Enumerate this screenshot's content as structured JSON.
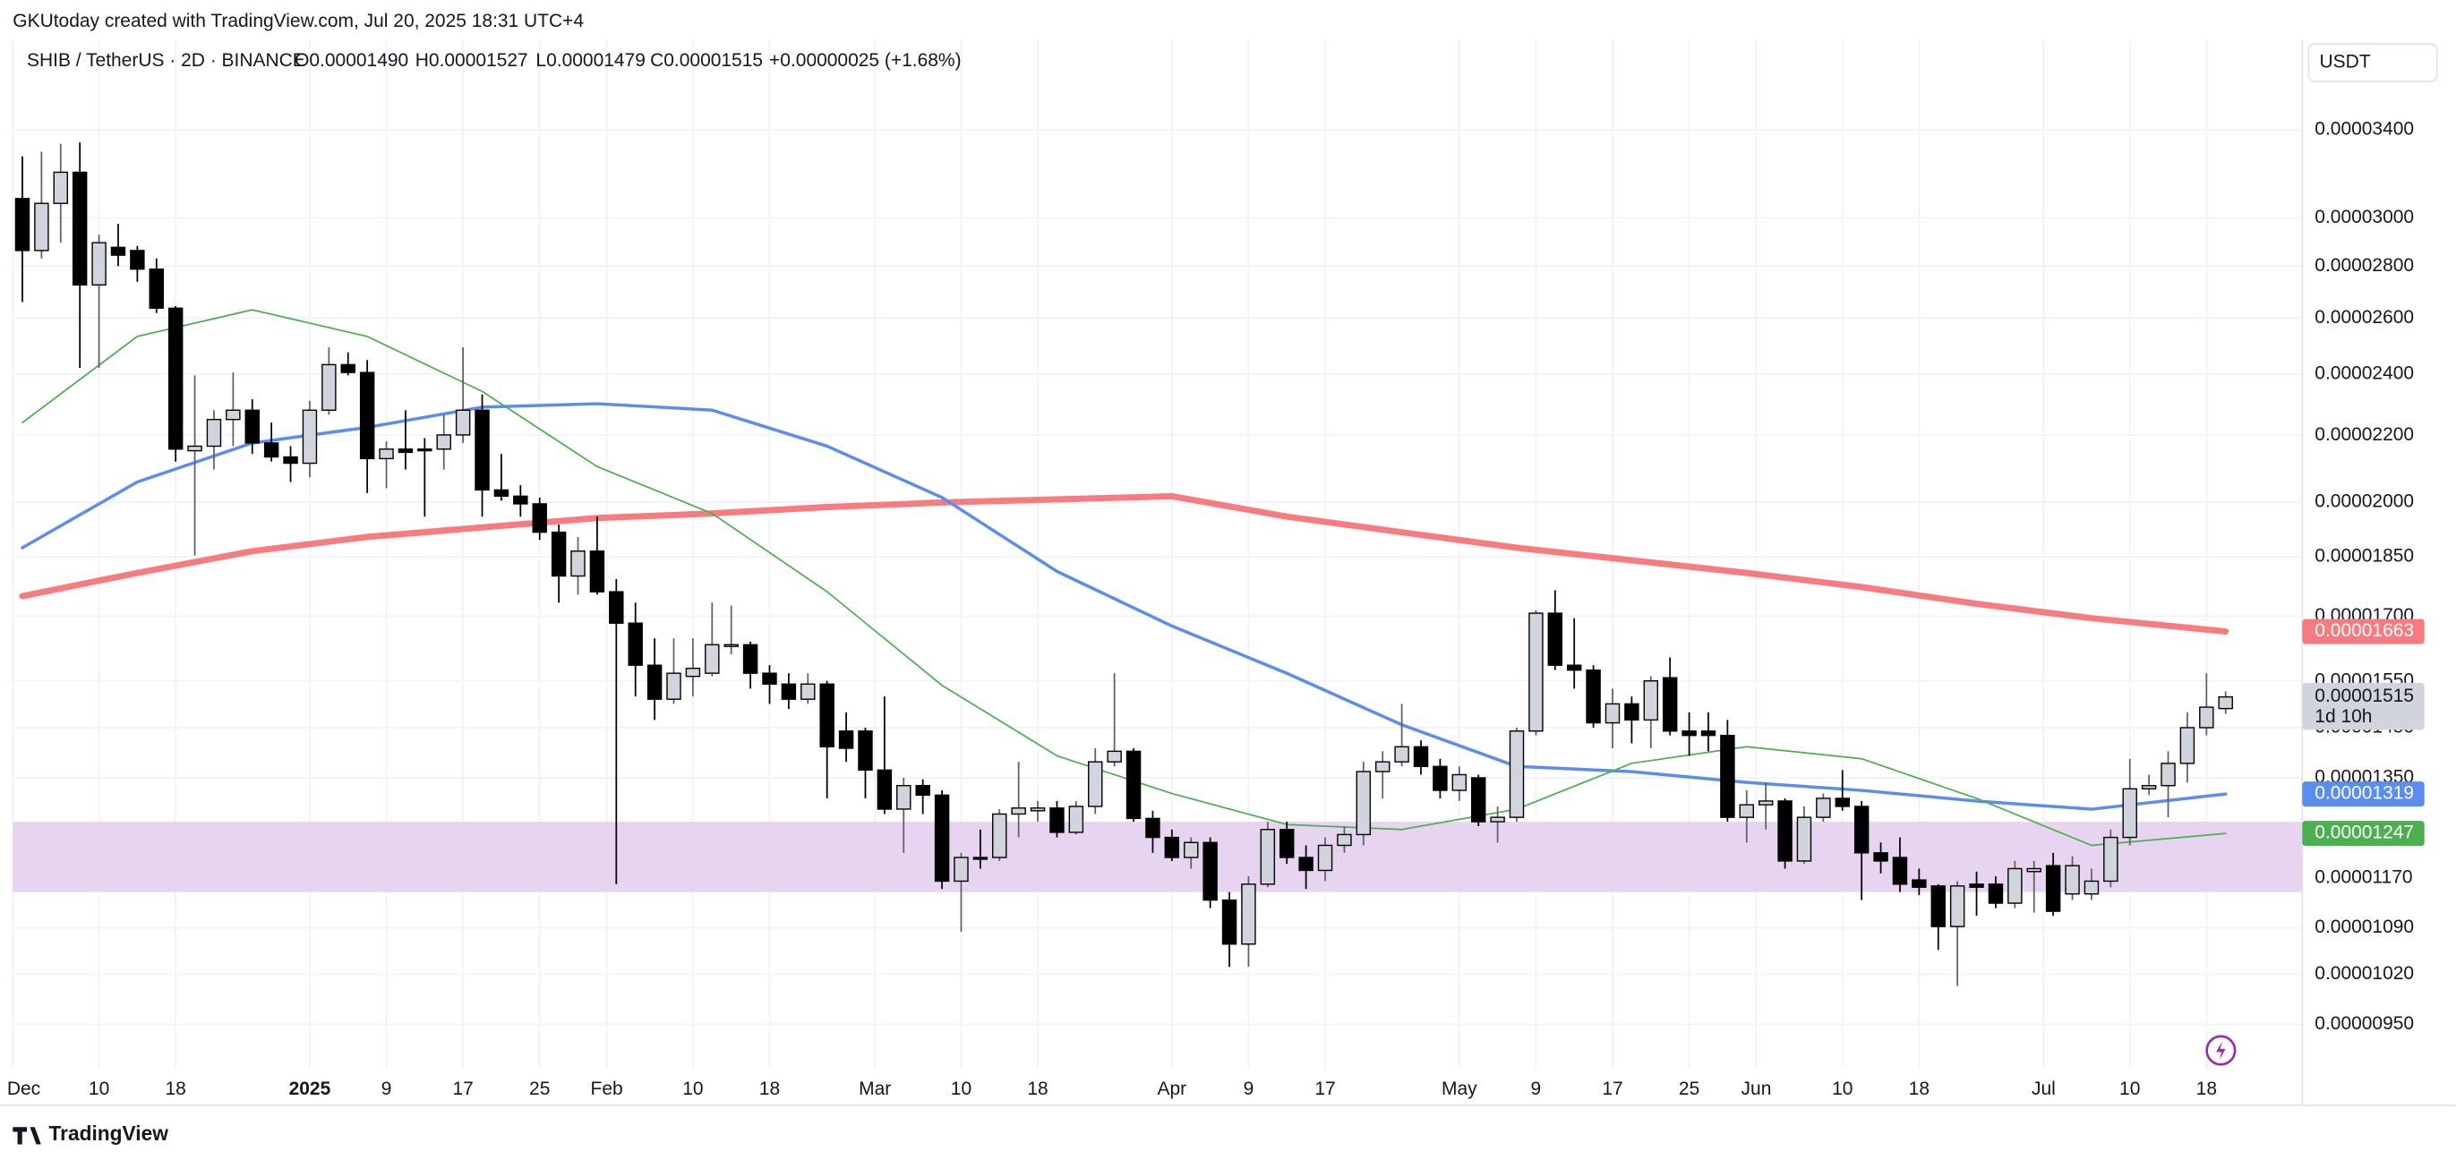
{
  "header": {
    "attribution": "GKUtoday created with TradingView.com, Jul 20, 2025 18:31 UTC+4",
    "logo": "TradingView"
  },
  "chart_data": {
    "type": "candlestick",
    "title": "SHIB / TetherUS · 2D · BINANCE",
    "ohlc_legend": [
      "O0.00001490",
      "H0.00001527",
      "L0.00001479",
      "C0.00001515"
    ],
    "change": "+0.00000025 (+1.68%)",
    "currency": "USDT",
    "x": [
      "2024-12-02",
      "2024-12-04",
      "2024-12-06",
      "2024-12-08",
      "2024-12-10",
      "2024-12-12",
      "2024-12-14",
      "2024-12-16",
      "2024-12-18",
      "2024-12-20",
      "2024-12-22",
      "2024-12-24",
      "2024-12-26",
      "2024-12-28",
      "2024-12-30",
      "2025-01-01",
      "2025-01-03",
      "2025-01-05",
      "2025-01-07",
      "2025-01-09",
      "2025-01-11",
      "2025-01-13",
      "2025-01-15",
      "2025-01-17",
      "2025-01-19",
      "2025-01-21",
      "2025-01-23",
      "2025-01-25",
      "2025-01-27",
      "2025-01-29",
      "2025-01-31",
      "2025-02-02",
      "2025-02-04",
      "2025-02-06",
      "2025-02-08",
      "2025-02-10",
      "2025-02-12",
      "2025-02-14",
      "2025-02-16",
      "2025-02-18",
      "2025-02-20",
      "2025-02-22",
      "2025-02-24",
      "2025-02-26",
      "2025-02-28",
      "2025-03-02",
      "2025-03-04",
      "2025-03-06",
      "2025-03-08",
      "2025-03-10",
      "2025-03-12",
      "2025-03-14",
      "2025-03-16",
      "2025-03-18",
      "2025-03-20",
      "2025-03-22",
      "2025-03-24",
      "2025-03-26",
      "2025-03-28",
      "2025-03-30",
      "2025-04-01",
      "2025-04-03",
      "2025-04-05",
      "2025-04-07",
      "2025-04-09",
      "2025-04-11",
      "2025-04-13",
      "2025-04-15",
      "2025-04-17",
      "2025-04-19",
      "2025-04-21",
      "2025-04-23",
      "2025-04-25",
      "2025-04-27",
      "2025-04-29",
      "2025-05-01",
      "2025-05-03",
      "2025-05-05",
      "2025-05-07",
      "2025-05-09",
      "2025-05-11",
      "2025-05-13",
      "2025-05-15",
      "2025-05-17",
      "2025-05-19",
      "2025-05-21",
      "2025-05-23",
      "2025-05-25",
      "2025-05-27",
      "2025-05-29",
      "2025-05-31",
      "2025-06-02",
      "2025-06-04",
      "2025-06-06",
      "2025-06-08",
      "2025-06-10",
      "2025-06-12",
      "2025-06-14",
      "2025-06-16",
      "2025-06-18",
      "2025-06-20",
      "2025-06-22",
      "2025-06-24",
      "2025-06-26",
      "2025-06-28",
      "2025-06-30",
      "2025-07-02",
      "2025-07-04",
      "2025-07-06",
      "2025-07-08",
      "2025-07-10",
      "2025-07-12",
      "2025-07-14",
      "2025-07-16",
      "2025-07-18",
      "2025-07-20"
    ],
    "open": [
      3.083e-05,
      2.863e-05,
      3.062e-05,
      3.201e-05,
      2.726e-05,
      2.876e-05,
      2.863e-05,
      2.788e-05,
      2.637e-05,
      2.152e-05,
      2.166e-05,
      2.25e-05,
      2.28e-05,
      2.176e-05,
      2.133e-05,
      2.114e-05,
      2.28e-05,
      2.433e-05,
      2.406e-05,
      2.128e-05,
      2.157e-05,
      2.157e-05,
      2.157e-05,
      2.201e-05,
      2.28e-05,
      2.035e-05,
      2.017e-05,
      1.995e-05,
      1.916e-05,
      1.8e-05,
      1.865e-05,
      1.76e-05,
      1.683e-05,
      1.585e-05,
      1.51e-05,
      1.56e-05,
      1.567e-05,
      1.628e-05,
      1.632e-05,
      1.567e-05,
      1.543e-05,
      1.51e-05,
      1.543e-05,
      1.443e-05,
      1.443e-05,
      1.365e-05,
      1.291e-05,
      1.335e-05,
      1.317e-05,
      1.165e-05,
      1.205e-05,
      1.205e-05,
      1.282e-05,
      1.288e-05,
      1.293e-05,
      1.249e-05,
      1.296e-05,
      1.381e-05,
      1.402e-05,
      1.274e-05,
      1.24e-05,
      1.205e-05,
      1.231e-05,
      1.134e-05,
      1.065e-05,
      1.16e-05,
      1.254e-05,
      1.205e-05,
      1.183e-05,
      1.226e-05,
      1.245e-05,
      1.362e-05,
      1.381e-05,
      1.411e-05,
      1.372e-05,
      1.326e-05,
      1.35e-05,
      1.268e-05,
      1.276e-05,
      1.443e-05,
      1.707e-05,
      1.585e-05,
      1.574e-05,
      1.46e-05,
      1.5e-05,
      1.466e-05,
      1.557e-05,
      1.443e-05,
      1.443e-05,
      1.434e-05,
      1.276e-05,
      1.299e-05,
      1.306e-05,
      1.199e-05,
      1.276e-05,
      1.311e-05,
      1.296e-05,
      1.213e-05,
      1.205e-05,
      1.167e-05,
      1.157e-05,
      1.092e-05,
      1.16e-05,
      1.16e-05,
      1.129e-05,
      1.181e-05,
      1.191e-05,
      1.144e-05,
      1.144e-05,
      1.165e-05,
      1.24e-05,
      1.329e-05,
      1.335e-05,
      1.378e-05,
      1.45e-05,
      1.49e-05
    ],
    "high": [
      3.274e-05,
      3.296e-05,
      3.333e-05,
      3.34e-05,
      2.928e-05,
      2.974e-05,
      2.882e-05,
      2.831e-05,
      2.645e-05,
      2.396e-05,
      2.28e-05,
      2.406e-05,
      2.316e-05,
      2.24e-05,
      2.166e-05,
      2.311e-05,
      2.494e-05,
      2.476e-05,
      2.449e-05,
      2.181e-05,
      2.28e-05,
      2.191e-05,
      2.265e-05,
      2.494e-05,
      2.332e-05,
      2.142e-05,
      2.049e-05,
      2.013e-05,
      1.937e-05,
      1.903e-05,
      1.959e-05,
      1.792e-05,
      1.733e-05,
      1.647e-05,
      1.647e-05,
      1.647e-05,
      1.733e-05,
      1.726e-05,
      1.639e-05,
      1.585e-05,
      1.567e-05,
      1.567e-05,
      1.55e-05,
      1.482e-05,
      1.45e-05,
      1.516e-05,
      1.35e-05,
      1.347e-05,
      1.326e-05,
      1.213e-05,
      1.254e-05,
      1.291e-05,
      1.381e-05,
      1.306e-05,
      1.306e-05,
      1.306e-05,
      1.408e-05,
      1.567e-05,
      1.408e-05,
      1.288e-05,
      1.254e-05,
      1.24e-05,
      1.24e-05,
      1.147e-05,
      1.173e-05,
      1.268e-05,
      1.268e-05,
      1.226e-05,
      1.24e-05,
      1.26e-05,
      1.381e-05,
      1.402e-05,
      1.5e-05,
      1.424e-05,
      1.387e-05,
      1.372e-05,
      1.356e-05,
      1.296e-05,
      1.45e-05,
      1.714e-05,
      1.764e-05,
      1.695e-05,
      1.585e-05,
      1.533e-05,
      1.516e-05,
      1.56e-05,
      1.603e-05,
      1.482e-05,
      1.482e-05,
      1.466e-05,
      1.326e-05,
      1.341e-05,
      1.311e-05,
      1.296e-05,
      1.32e-05,
      1.365e-05,
      1.306e-05,
      1.231e-05,
      1.24e-05,
      1.186e-05,
      1.16e-05,
      1.165e-05,
      1.181e-05,
      1.173e-05,
      1.199e-05,
      1.199e-05,
      1.213e-05,
      1.207e-05,
      1.186e-05,
      1.254e-05,
      1.387e-05,
      1.356e-05,
      1.402e-05,
      1.482e-05,
      1.567e-05,
      1.527e-05
    ],
    "low": [
      2.66e-05,
      2.831e-05,
      2.895e-05,
      2.422e-05,
      2.422e-05,
      2.8e-05,
      2.738e-05,
      2.619e-05,
      2.119e-05,
      1.853e-05,
      2.095e-05,
      2.166e-05,
      2.142e-05,
      2.119e-05,
      2.058e-05,
      2.072e-05,
      2.265e-05,
      2.396e-05,
      2.026e-05,
      2.04e-05,
      2.095e-05,
      1.959e-05,
      2.095e-05,
      2.176e-05,
      1.959e-05,
      2.004e-05,
      1.959e-05,
      1.895e-05,
      1.733e-05,
      1.753e-05,
      1.753e-05,
      1.16e-05,
      1.516e-05,
      1.466e-05,
      1.5e-05,
      1.516e-05,
      1.56e-05,
      1.61e-05,
      1.533e-05,
      1.5e-05,
      1.489e-05,
      1.5e-05,
      1.311e-05,
      1.381e-05,
      1.311e-05,
      1.282e-05,
      1.213e-05,
      1.282e-05,
      1.152e-05,
      1.084e-05,
      1.186e-05,
      1.199e-05,
      1.24e-05,
      1.268e-05,
      1.24e-05,
      1.245e-05,
      1.282e-05,
      1.372e-05,
      1.268e-05,
      1.213e-05,
      1.199e-05,
      1.186e-05,
      1.121e-05,
      1.031e-05,
      1.031e-05,
      1.155e-05,
      1.194e-05,
      1.152e-05,
      1.165e-05,
      1.213e-05,
      1.226e-05,
      1.311e-05,
      1.372e-05,
      1.356e-05,
      1.311e-05,
      1.306e-05,
      1.26e-05,
      1.231e-05,
      1.268e-05,
      1.434e-05,
      1.574e-05,
      1.533e-05,
      1.45e-05,
      1.408e-05,
      1.418e-05,
      1.408e-05,
      1.434e-05,
      1.393e-05,
      1.402e-05,
      1.268e-05,
      1.231e-05,
      1.254e-05,
      1.186e-05,
      1.194e-05,
      1.268e-05,
      1.288e-05,
      1.134e-05,
      1.178e-05,
      1.147e-05,
      1.142e-05,
      1.056e-05,
      1.003e-05,
      1.109e-05,
      1.121e-05,
      1.121e-05,
      1.114e-05,
      1.109e-05,
      1.134e-05,
      1.134e-05,
      1.155e-05,
      1.226e-05,
      1.317e-05,
      1.276e-05,
      1.341e-05,
      1.434e-05,
      1.479e-05
    ],
    "close": [
      2.863e-05,
      3.062e-05,
      3.201e-05,
      2.726e-05,
      2.895e-05,
      2.844e-05,
      2.788e-05,
      2.637e-05,
      2.157e-05,
      2.166e-05,
      2.25e-05,
      2.28e-05,
      2.176e-05,
      2.133e-05,
      2.114e-05,
      2.28e-05,
      2.433e-05,
      2.406e-05,
      2.128e-05,
      2.157e-05,
      2.147e-05,
      2.152e-05,
      2.201e-05,
      2.28e-05,
      2.035e-05,
      2.017e-05,
      1.995e-05,
      1.916e-05,
      1.8e-05,
      1.865e-05,
      1.76e-05,
      1.683e-05,
      1.585e-05,
      1.51e-05,
      1.567e-05,
      1.578e-05,
      1.632e-05,
      1.632e-05,
      1.567e-05,
      1.543e-05,
      1.51e-05,
      1.543e-05,
      1.411e-05,
      1.408e-05,
      1.365e-05,
      1.291e-05,
      1.335e-05,
      1.317e-05,
      1.165e-05,
      1.205e-05,
      1.202e-05,
      1.282e-05,
      1.293e-05,
      1.293e-05,
      1.249e-05,
      1.296e-05,
      1.381e-05,
      1.402e-05,
      1.274e-05,
      1.24e-05,
      1.205e-05,
      1.231e-05,
      1.134e-05,
      1.065e-05,
      1.16e-05,
      1.254e-05,
      1.205e-05,
      1.183e-05,
      1.226e-05,
      1.245e-05,
      1.362e-05,
      1.381e-05,
      1.411e-05,
      1.372e-05,
      1.326e-05,
      1.356e-05,
      1.268e-05,
      1.276e-05,
      1.443e-05,
      1.707e-05,
      1.585e-05,
      1.574e-05,
      1.46e-05,
      1.5e-05,
      1.466e-05,
      1.55e-05,
      1.443e-05,
      1.434e-05,
      1.434e-05,
      1.276e-05,
      1.299e-05,
      1.306e-05,
      1.199e-05,
      1.276e-05,
      1.311e-05,
      1.296e-05,
      1.213e-05,
      1.199e-05,
      1.16e-05,
      1.155e-05,
      1.092e-05,
      1.157e-05,
      1.155e-05,
      1.129e-05,
      1.186e-05,
      1.186e-05,
      1.116e-05,
      1.191e-05,
      1.165e-05,
      1.24e-05,
      1.329e-05,
      1.335e-05,
      1.378e-05,
      1.45e-05,
      1.493e-05,
      1.515e-05
    ],
    "up_color": "#d1d4dc",
    "down_color": "#000000",
    "wick_color": "#5d606b",
    "last_price": {
      "label": "0.00001515",
      "countdown": "1d 10h",
      "color": "#d1d4dc"
    },
    "moving_averages": {
      "x": [
        "2024-12-02",
        "2024-12-14",
        "2024-12-26",
        "2025-01-07",
        "2025-01-19",
        "2025-01-31",
        "2025-02-12",
        "2025-02-24",
        "2025-03-08",
        "2025-03-20",
        "2025-04-01",
        "2025-04-13",
        "2025-04-25",
        "2025-05-07",
        "2025-05-19",
        "2025-05-31",
        "2025-06-12",
        "2025-06-24",
        "2025-07-06",
        "2025-07-20"
      ],
      "series": [
        {
          "color": "#f77c80",
          "width": 4,
          "last_label": "0.00001663",
          "values": [
            1.749e-05,
            1.808e-05,
            1.865e-05,
            1.903e-05,
            1.929e-05,
            1.955e-05,
            1.968e-05,
            1.986e-05,
            1.999e-05,
            2.008e-05,
            2.017e-05,
            1.959e-05,
            1.916e-05,
            1.874e-05,
            1.841e-05,
            1.808e-05,
            1.772e-05,
            1.73e-05,
            1.695e-05,
            1.663e-05
          ]
        },
        {
          "color": "#5b8def",
          "width": 2,
          "last_label": "0.00001319",
          "values": [
            1.874e-05,
            2.058e-05,
            2.176e-05,
            2.225e-05,
            2.29e-05,
            2.301e-05,
            2.28e-05,
            2.166e-05,
            2.013e-05,
            1.812e-05,
            1.676e-05,
            1.567e-05,
            1.456e-05,
            1.372e-05,
            1.362e-05,
            1.341e-05,
            1.326e-05,
            1.306e-05,
            1.291e-05,
            1.319e-05
          ]
        },
        {
          "color": "#4caf50",
          "width": 1,
          "last_label": "0.00001247",
          "values": [
            2.24e-05,
            2.533e-05,
            2.631e-05,
            2.533e-05,
            2.342e-05,
            2.104e-05,
            1.968e-05,
            1.76e-05,
            1.54e-05,
            1.393e-05,
            1.32e-05,
            1.263e-05,
            1.254e-05,
            1.291e-05,
            1.378e-05,
            1.411e-05,
            1.387e-05,
            1.311e-05,
            1.226e-05,
            1.247e-05
          ]
        }
      ]
    },
    "zone": {
      "range": [
        1.147e-05,
        1.268e-05
      ],
      "color": "#e7d4f0"
    },
    "xlim": [
      "2024-12-01",
      "2025-07-28"
    ],
    "xticks": [
      {
        "value": "2024-12-01",
        "label": "Dec"
      },
      {
        "value": "2024-12-10",
        "label": "10"
      },
      {
        "value": "2024-12-18",
        "label": "18"
      },
      {
        "value": "2025-01-01",
        "label": "2025"
      },
      {
        "value": "2025-01-09",
        "label": "9"
      },
      {
        "value": "2025-01-17",
        "label": "17"
      },
      {
        "value": "2025-01-25",
        "label": "25"
      },
      {
        "value": "2025-02-01",
        "label": "Feb"
      },
      {
        "value": "2025-02-10",
        "label": "10"
      },
      {
        "value": "2025-02-18",
        "label": "18"
      },
      {
        "value": "2025-03-01",
        "label": "Mar"
      },
      {
        "value": "2025-03-10",
        "label": "10"
      },
      {
        "value": "2025-03-18",
        "label": "18"
      },
      {
        "value": "2025-04-01",
        "label": "Apr"
      },
      {
        "value": "2025-04-09",
        "label": "9"
      },
      {
        "value": "2025-04-17",
        "label": "17"
      },
      {
        "value": "2025-05-01",
        "label": "May"
      },
      {
        "value": "2025-05-09",
        "label": "9"
      },
      {
        "value": "2025-05-17",
        "label": "17"
      },
      {
        "value": "2025-05-25",
        "label": "25"
      },
      {
        "value": "2025-06-01",
        "label": "Jun"
      },
      {
        "value": "2025-06-10",
        "label": "10"
      },
      {
        "value": "2025-06-18",
        "label": "18"
      },
      {
        "value": "2025-07-01",
        "label": "Jul"
      },
      {
        "value": "2025-07-10",
        "label": "10"
      },
      {
        "value": "2025-07-18",
        "label": "18"
      }
    ],
    "ylim": [
      8.97e-06,
      3.827e-05
    ],
    "log": true,
    "yticks": [
      {
        "value": 3.4e-05,
        "label": "0.00003400"
      },
      {
        "value": 3e-05,
        "label": "0.00003000"
      },
      {
        "value": 2.8e-05,
        "label": "0.00002800"
      },
      {
        "value": 2.6e-05,
        "label": "0.00002600"
      },
      {
        "value": 2.4e-05,
        "label": "0.00002400"
      },
      {
        "value": 2.2e-05,
        "label": "0.00002200"
      },
      {
        "value": 2e-05,
        "label": "0.00002000"
      },
      {
        "value": 1.85e-05,
        "label": "0.00001850"
      },
      {
        "value": 1.7e-05,
        "label": "0.00001700"
      },
      {
        "value": 1.55e-05,
        "label": "0.00001550"
      },
      {
        "value": 1.45e-05,
        "label": "0.00001450"
      },
      {
        "value": 1.35e-05,
        "label": "0.00001350"
      },
      {
        "value": 1.17e-05,
        "label": "0.00001170"
      },
      {
        "value": 1.09e-05,
        "label": "0.00001090"
      },
      {
        "value": 1.02e-05,
        "label": "0.00001020"
      },
      {
        "value": 9.5e-06,
        "label": "0.00000950"
      }
    ],
    "grid": true
  }
}
